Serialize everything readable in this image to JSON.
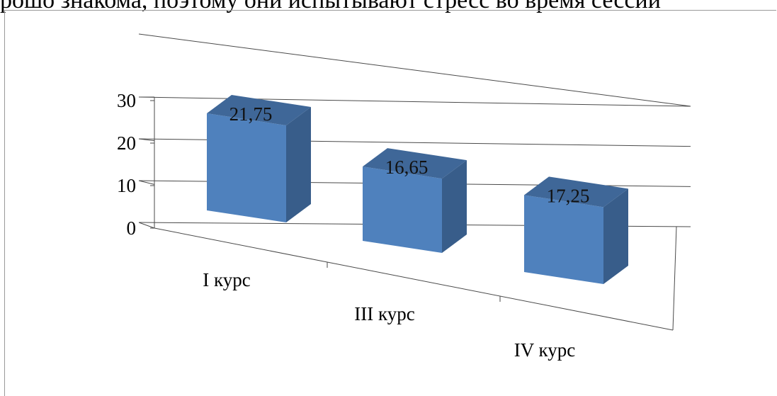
{
  "header_fragment": "рошо знакома, поэтому они испытывают стресс во время сессии",
  "chart_data": {
    "type": "bar",
    "style": "3d-column",
    "categories": [
      "I курс",
      "III курс",
      "IV курс"
    ],
    "values": [
      21.75,
      16.65,
      17.25
    ],
    "data_labels": [
      "21,75",
      "16,65",
      "17,25"
    ],
    "y_ticks": [
      "0",
      "10",
      "20",
      "30"
    ],
    "ylim": [
      0,
      30
    ],
    "grid": true,
    "legend": "none",
    "bar_color": "#4f81bd"
  }
}
